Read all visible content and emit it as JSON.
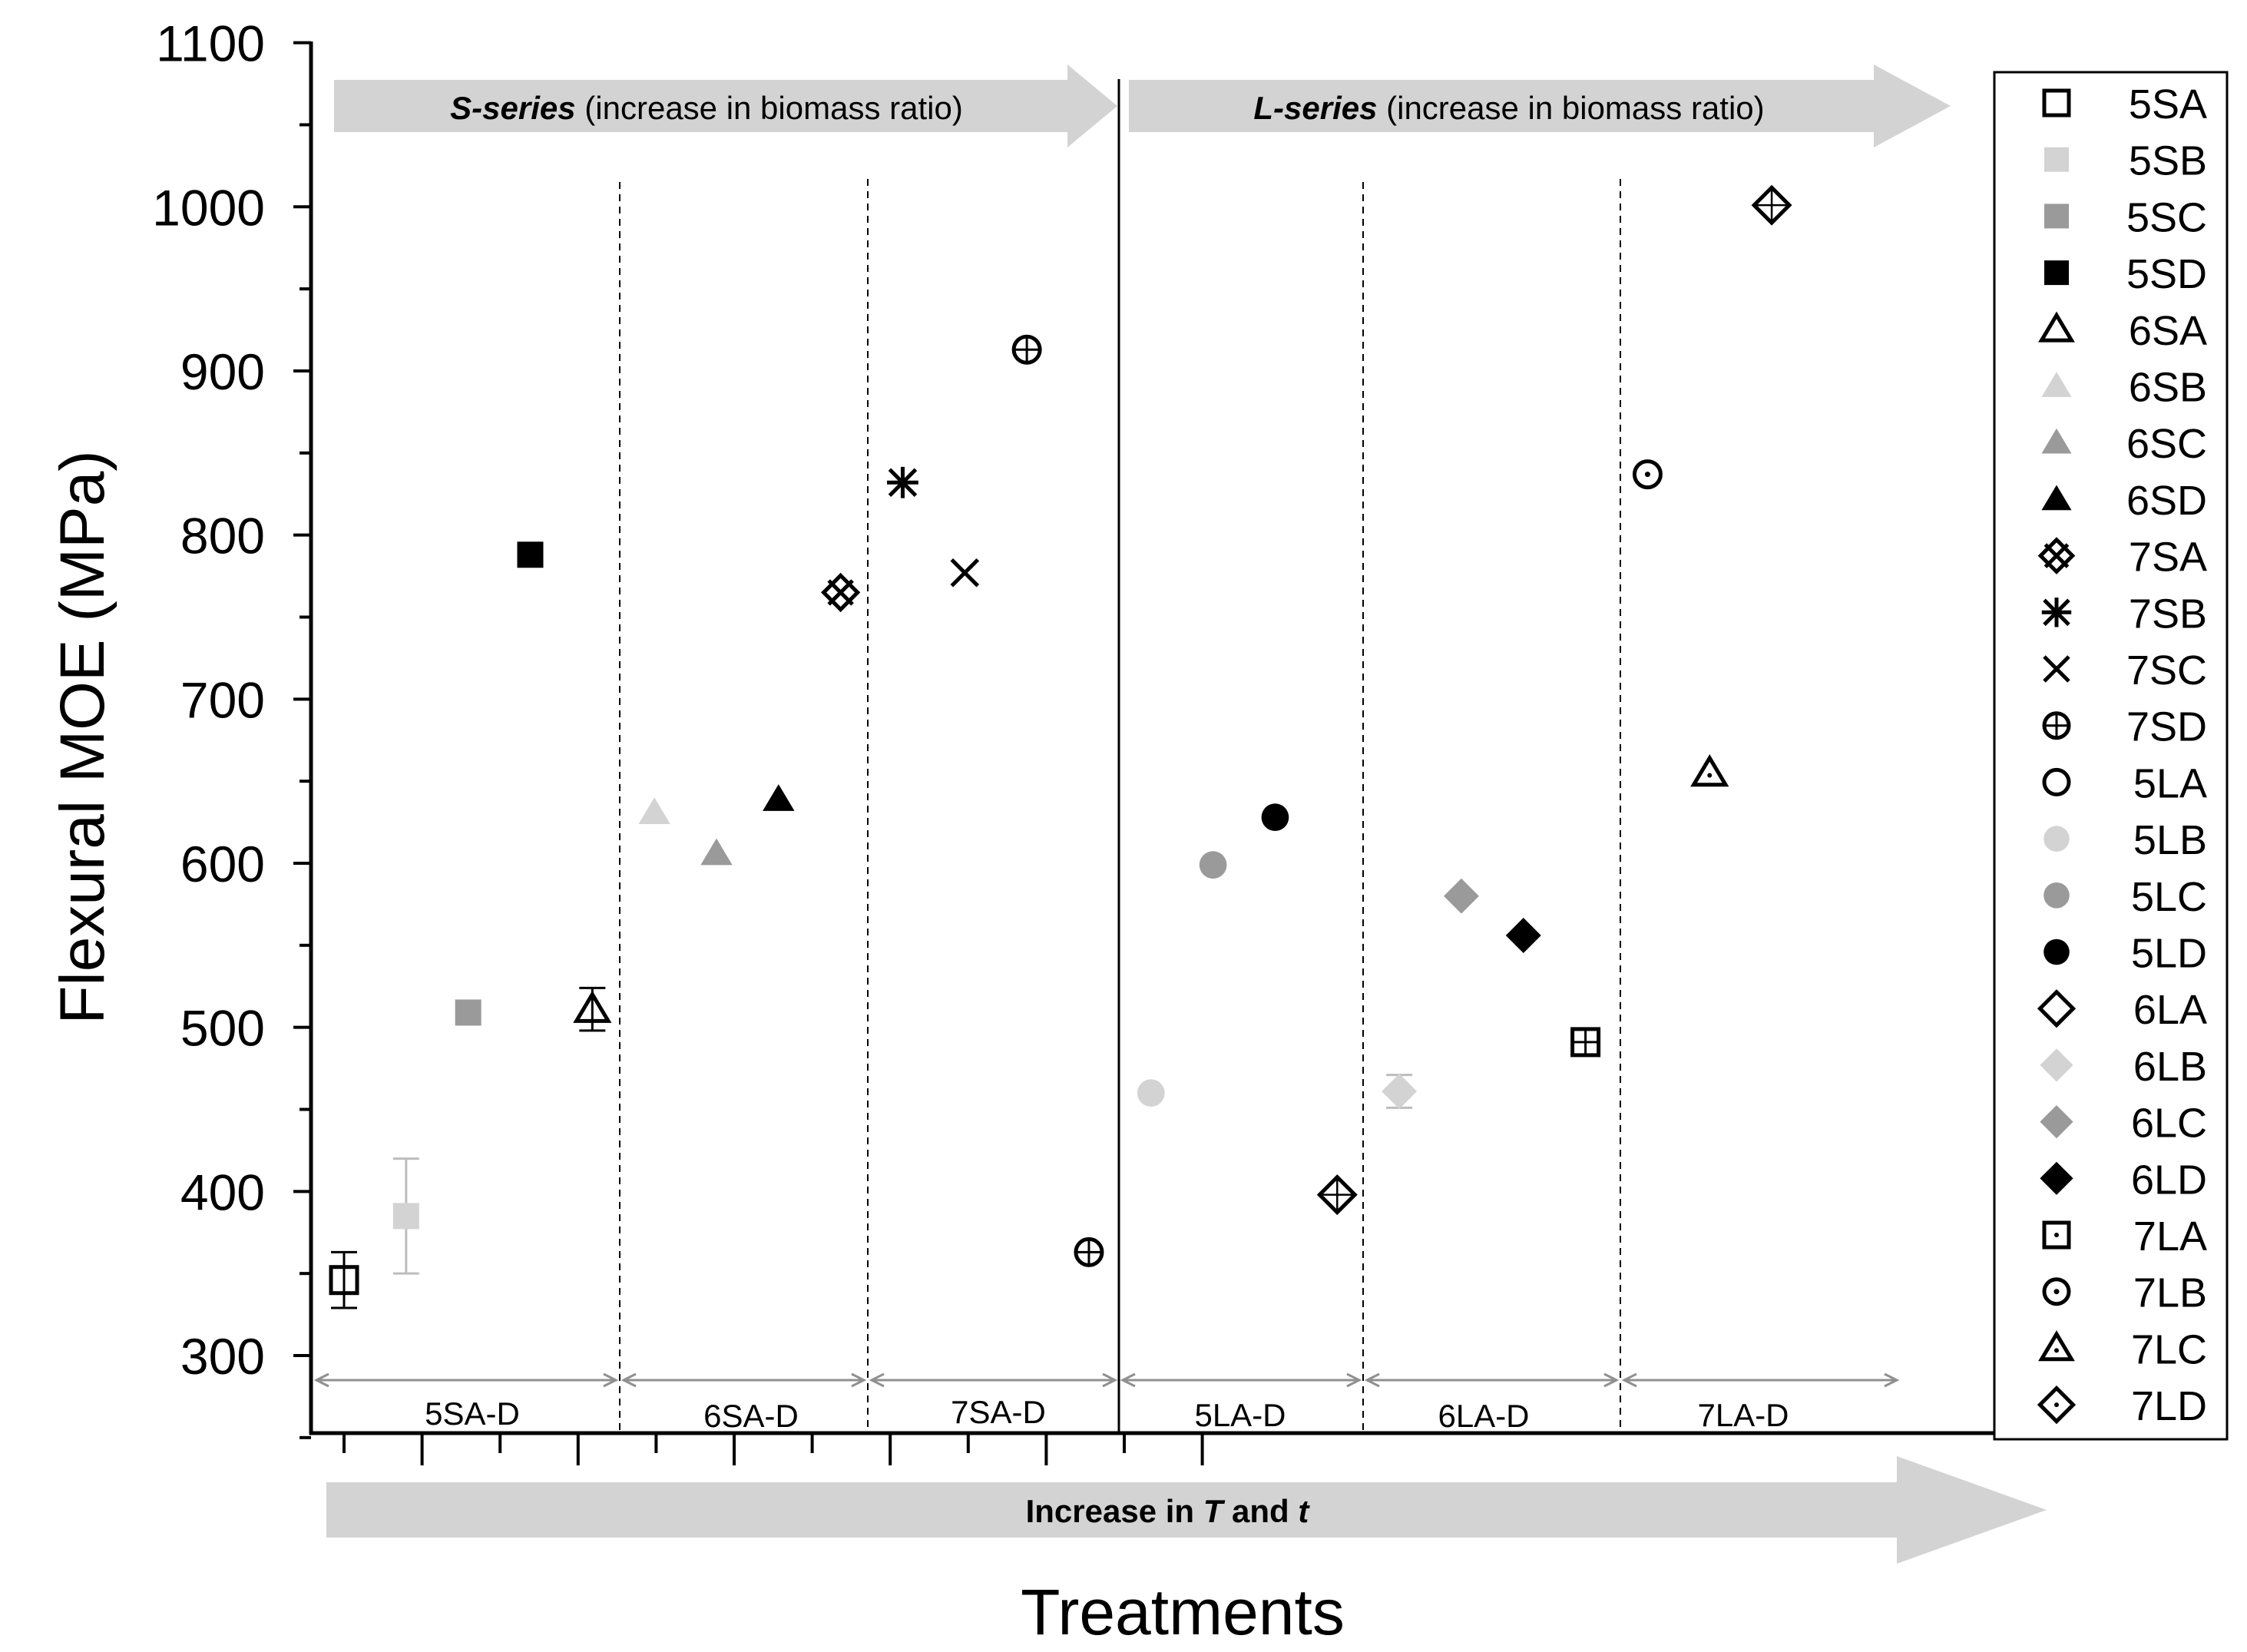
{
  "chart_data": {
    "type": "scatter",
    "title": "",
    "xlabel": "Treatments",
    "ylabel": "Flexural MOE (MPa)",
    "ylim": [
      250,
      1100
    ],
    "yticks": [
      300,
      400,
      500,
      600,
      700,
      800,
      900,
      1000,
      1100
    ],
    "grid": false,
    "legend_position": "right",
    "series_arrows": [
      {
        "name": "S-series",
        "note": " (increase in biomass ratio)"
      },
      {
        "name": "L-series",
        "note": " (increase in biomass ratio)"
      }
    ],
    "bottom_arrow": {
      "prefix": "Increase in ",
      "t1": "T",
      "mid": " and ",
      "t2": "t"
    },
    "groups": [
      "5SA-D",
      "6SA-D",
      "7SA-D",
      "5LA-D",
      "6LA-D",
      "7LA-D"
    ],
    "points": [
      {
        "name": "5SA",
        "x": 1,
        "y": 346,
        "err": 17,
        "marker": "square-open",
        "color": "#000000"
      },
      {
        "name": "5SB",
        "x": 2,
        "y": 385,
        "err": 35,
        "marker": "square",
        "color": "#d3d3d3"
      },
      {
        "name": "5SC",
        "x": 3,
        "y": 509,
        "marker": "square",
        "color": "#9a9a9a"
      },
      {
        "name": "5SD",
        "x": 4,
        "y": 788,
        "marker": "square",
        "color": "#000000"
      },
      {
        "name": "6SA",
        "x": 5,
        "y": 511,
        "err": 13,
        "marker": "triangle-open",
        "color": "#000000"
      },
      {
        "name": "6SB",
        "x": 6,
        "y": 631,
        "marker": "triangle",
        "color": "#d3d3d3"
      },
      {
        "name": "6SC",
        "x": 7,
        "y": 606,
        "marker": "triangle",
        "color": "#9a9a9a"
      },
      {
        "name": "6SD",
        "x": 8,
        "y": 639,
        "marker": "triangle",
        "color": "#000000"
      },
      {
        "name": "7SA",
        "x": 9,
        "y": 765,
        "marker": "xsquare",
        "color": "#000000"
      },
      {
        "name": "7SB",
        "x": 10,
        "y": 832,
        "marker": "asterisk",
        "color": "#000000"
      },
      {
        "name": "7SC",
        "x": 11,
        "y": 777,
        "marker": "x",
        "color": "#000000"
      },
      {
        "name": "7SD",
        "x": 12,
        "y": 913,
        "marker": "circle-plus",
        "color": "#000000"
      },
      {
        "name": "5LA",
        "x": 13,
        "y": 363,
        "marker": "circle-plus",
        "color": "#000000"
      },
      {
        "name": "5LB",
        "x": 14,
        "y": 460,
        "marker": "circle",
        "color": "#d3d3d3"
      },
      {
        "name": "5LC",
        "x": 15,
        "y": 599,
        "marker": "circle",
        "color": "#9a9a9a"
      },
      {
        "name": "5LD",
        "x": 16,
        "y": 628,
        "marker": "circle",
        "color": "#000000"
      },
      {
        "name": "6LA",
        "x": 17,
        "y": 398,
        "marker": "diamond-plus",
        "color": "#000000"
      },
      {
        "name": "6LB",
        "x": 18,
        "y": 461,
        "err": 10,
        "marker": "diamond",
        "color": "#d3d3d3"
      },
      {
        "name": "6LC",
        "x": 19,
        "y": 580,
        "marker": "diamond",
        "color": "#9a9a9a"
      },
      {
        "name": "6LD",
        "x": 20,
        "y": 556,
        "marker": "diamond",
        "color": "#000000"
      },
      {
        "name": "7LA",
        "x": 21,
        "y": 491,
        "marker": "square-plus",
        "color": "#000000"
      },
      {
        "name": "7LB",
        "x": 22,
        "y": 837,
        "marker": "circle-dot",
        "color": "#000000"
      },
      {
        "name": "7LC",
        "x": 23,
        "y": 655,
        "marker": "triangle-dot",
        "color": "#000000"
      },
      {
        "name": "7LD",
        "x": 24,
        "y": 1001,
        "marker": "diamond-plus",
        "color": "#000000"
      }
    ],
    "legend": [
      {
        "label": "5SA",
        "marker": "square-open",
        "color": "#000000"
      },
      {
        "label": "5SB",
        "marker": "square",
        "color": "#d3d3d3"
      },
      {
        "label": "5SC",
        "marker": "square",
        "color": "#9a9a9a"
      },
      {
        "label": "5SD",
        "marker": "square",
        "color": "#000000"
      },
      {
        "label": "6SA",
        "marker": "triangle-open",
        "color": "#000000"
      },
      {
        "label": "6SB",
        "marker": "triangle",
        "color": "#d3d3d3"
      },
      {
        "label": "6SC",
        "marker": "triangle",
        "color": "#9a9a9a"
      },
      {
        "label": "6SD",
        "marker": "triangle",
        "color": "#000000"
      },
      {
        "label": "7SA",
        "marker": "xsquare",
        "color": "#000000"
      },
      {
        "label": "7SB",
        "marker": "asterisk",
        "color": "#000000"
      },
      {
        "label": "7SC",
        "marker": "x",
        "color": "#000000"
      },
      {
        "label": "7SD",
        "marker": "circle-plus",
        "color": "#000000"
      },
      {
        "label": "5LA",
        "marker": "circle-open",
        "color": "#000000"
      },
      {
        "label": "5LB",
        "marker": "circle",
        "color": "#d3d3d3"
      },
      {
        "label": "5LC",
        "marker": "circle",
        "color": "#9a9a9a"
      },
      {
        "label": "5LD",
        "marker": "circle",
        "color": "#000000"
      },
      {
        "label": "6LA",
        "marker": "diamond-open",
        "color": "#000000"
      },
      {
        "label": "6LB",
        "marker": "diamond",
        "color": "#d3d3d3"
      },
      {
        "label": "6LC",
        "marker": "diamond",
        "color": "#9a9a9a"
      },
      {
        "label": "6LD",
        "marker": "diamond",
        "color": "#000000"
      },
      {
        "label": "7LA",
        "marker": "square-dot",
        "color": "#000000"
      },
      {
        "label": "7LB",
        "marker": "circle-dot",
        "color": "#000000"
      },
      {
        "label": "7LC",
        "marker": "triangle-dot",
        "color": "#000000"
      },
      {
        "label": "7LD",
        "marker": "diamond-dot",
        "color": "#000000"
      }
    ]
  }
}
